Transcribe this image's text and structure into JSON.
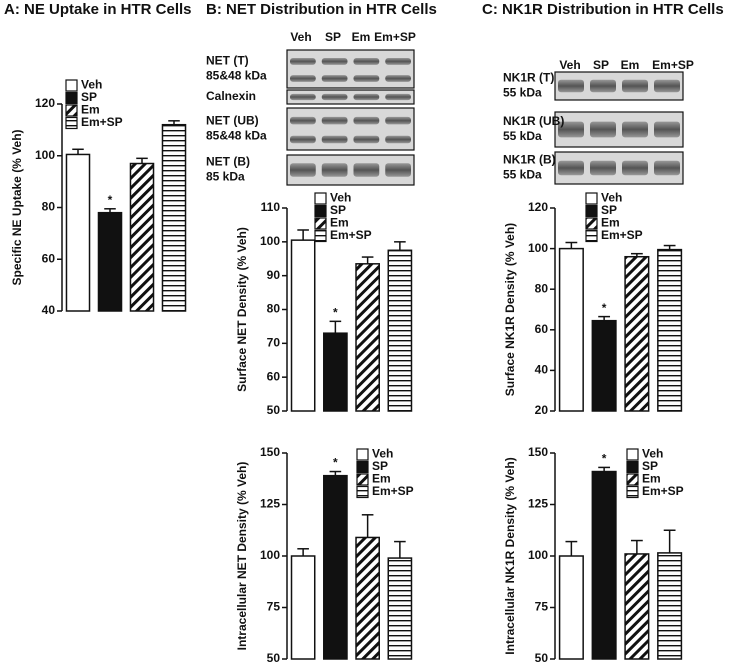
{
  "chart_data": [
    {
      "type": "bar",
      "title": "A: NE Uptake in HTR Cells",
      "ylabel": "Specific NE Uptake (% Veh)",
      "categories": [
        "Veh",
        "SP",
        "Em",
        "Em+SP"
      ],
      "values": [
        100.5,
        78,
        97,
        112
      ],
      "errors": [
        2,
        1.5,
        2,
        1.5
      ],
      "fills": [
        "open",
        "solid",
        "diagonal",
        "horizontal"
      ],
      "ylim": [
        40,
        120
      ],
      "yticks": [
        40,
        60,
        80,
        100,
        120
      ],
      "annotation": "*",
      "annotation_category": "SP"
    },
    {
      "type": "bar",
      "ylabel": "Surface NET Density (% Veh)",
      "categories": [
        "Veh",
        "SP",
        "Em",
        "Em+SP"
      ],
      "values": [
        100.5,
        73,
        93.5,
        97.5
      ],
      "errors": [
        3,
        3.5,
        2,
        2.5
      ],
      "fills": [
        "open",
        "solid",
        "diagonal",
        "horizontal"
      ],
      "ylim": [
        50,
        110
      ],
      "yticks": [
        50,
        60,
        70,
        80,
        90,
        100,
        110
      ],
      "annotation": "*",
      "annotation_category": "SP"
    },
    {
      "type": "bar",
      "ylabel": "Intracellular NET Density (% Veh)",
      "categories": [
        "Veh",
        "SP",
        "Em",
        "Em+SP"
      ],
      "values": [
        100,
        139,
        109,
        99
      ],
      "errors": [
        3.5,
        2,
        11,
        8
      ],
      "fills": [
        "open",
        "solid",
        "diagonal",
        "horizontal"
      ],
      "ylim": [
        50,
        150
      ],
      "yticks": [
        50,
        75,
        100,
        125,
        150
      ],
      "annotation": "*",
      "annotation_category": "SP"
    },
    {
      "type": "bar",
      "ylabel": "Surface NK1R Density (% Veh)",
      "categories": [
        "Veh",
        "SP",
        "Em",
        "Em+SP"
      ],
      "values": [
        100,
        64.5,
        96,
        99.5
      ],
      "errors": [
        3,
        2,
        1.5,
        2
      ],
      "fills": [
        "open",
        "solid",
        "diagonal",
        "horizontal"
      ],
      "ylim": [
        20,
        120
      ],
      "yticks": [
        20,
        40,
        60,
        80,
        100,
        120
      ],
      "annotation": "*",
      "annotation_category": "SP"
    },
    {
      "type": "bar",
      "ylabel": "Intracellular NK1R Density (% Veh)",
      "categories": [
        "Veh",
        "SP",
        "Em",
        "Em+SP"
      ],
      "values": [
        100,
        141,
        101,
        101.5
      ],
      "errors": [
        7,
        2,
        6.5,
        11
      ],
      "fills": [
        "open",
        "solid",
        "diagonal",
        "horizontal"
      ],
      "ylim": [
        50,
        150
      ],
      "yticks": [
        50,
        75,
        100,
        125,
        150
      ],
      "annotation": "*",
      "annotation_category": "SP"
    }
  ],
  "blots": [
    {
      "title": "B: NET Distribution in HTR Cells",
      "lanes": [
        "Veh",
        "SP",
        "Em",
        "Em+SP"
      ],
      "rows": [
        {
          "label": [
            "NET (T)",
            "85&48 kDa"
          ]
        },
        {
          "label": [
            "Calnexin"
          ]
        },
        {
          "label": [
            "NET (UB)",
            "85&48 kDa"
          ]
        },
        {
          "label": [
            "NET (B)",
            "85 kDa"
          ]
        }
      ]
    },
    {
      "title": "C: NK1R Distribution in HTR Cells",
      "lanes": [
        "Veh",
        "SP",
        "Em",
        "Em+SP"
      ],
      "rows": [
        {
          "label": [
            "NK1R (T)",
            "55 kDa"
          ]
        },
        {
          "label": [
            "NK1R (UB)",
            "55 kDa"
          ]
        },
        {
          "label": [
            "NK1R (B)",
            "55 kDa"
          ]
        }
      ]
    }
  ]
}
